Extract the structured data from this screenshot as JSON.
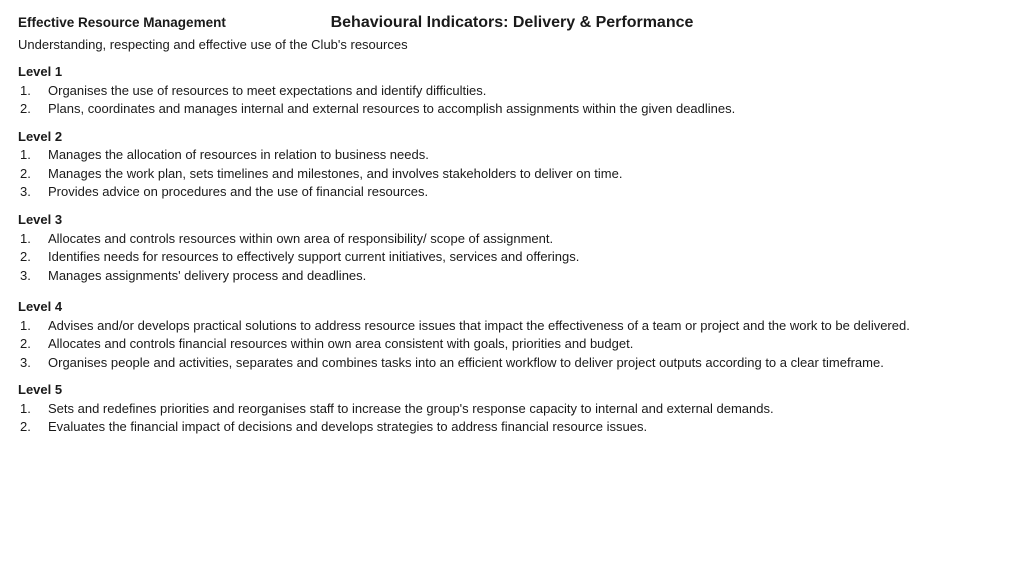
{
  "doc_title": "Behavioural Indicators: Delivery & Performance",
  "section_title": "Effective Resource Management",
  "section_desc": "Understanding, respecting and effective use of the Club's resources",
  "levels": [
    {
      "title": "Level 1",
      "items": [
        "Organises the use of resources to meet expectations and identify difficulties.",
        "Plans, coordinates and manages internal and external resources to accomplish assignments within the given deadlines."
      ]
    },
    {
      "title": "Level 2",
      "items": [
        "Manages the allocation of resources in relation to business needs.",
        "Manages the work plan, sets timelines and milestones, and involves stakeholders to deliver on time.",
        "Provides advice on procedures and the use of financial resources."
      ]
    },
    {
      "title": "Level 3",
      "items": [
        "Allocates and controls resources within own area of responsibility/ scope of assignment.",
        "Identifies needs for resources to effectively support current initiatives, services and offerings.",
        "Manages assignments' delivery process and deadlines."
      ]
    },
    {
      "title": "Level 4",
      "items": [
        "Advises and/or develops practical solutions to address resource issues that impact the effectiveness of a team or project and the work to be delivered.",
        "Allocates and controls financial resources within own area consistent with goals, priorities and budget.",
        "Organises people and activities, separates and combines tasks into an efficient workflow to deliver project outputs according to a clear timeframe."
      ]
    },
    {
      "title": "Level 5",
      "items": [
        "Sets and redefines priorities and reorganises staff to increase the group's response capacity to internal and external demands.",
        "Evaluates the financial impact of decisions and develops strategies to address financial resource issues."
      ]
    }
  ]
}
